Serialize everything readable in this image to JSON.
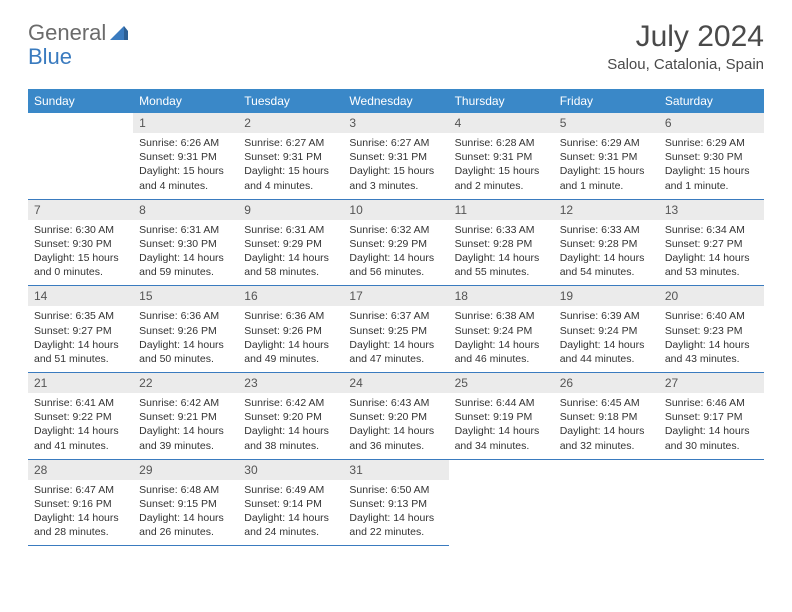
{
  "brand": {
    "part1": "General",
    "part2": "Blue",
    "icon_color": "#3a7bbf"
  },
  "header": {
    "title": "July 2024",
    "location": "Salou, Catalonia, Spain"
  },
  "colors": {
    "header_bg": "#3a88c8",
    "header_text": "#ffffff",
    "daynum_bg": "#ebebeb",
    "border": "#3a7bbf"
  },
  "weekdays": [
    "Sunday",
    "Monday",
    "Tuesday",
    "Wednesday",
    "Thursday",
    "Friday",
    "Saturday"
  ],
  "weeks": [
    [
      null,
      {
        "n": "1",
        "sunrise": "6:26 AM",
        "sunset": "9:31 PM",
        "daylight": "15 hours and 4 minutes."
      },
      {
        "n": "2",
        "sunrise": "6:27 AM",
        "sunset": "9:31 PM",
        "daylight": "15 hours and 4 minutes."
      },
      {
        "n": "3",
        "sunrise": "6:27 AM",
        "sunset": "9:31 PM",
        "daylight": "15 hours and 3 minutes."
      },
      {
        "n": "4",
        "sunrise": "6:28 AM",
        "sunset": "9:31 PM",
        "daylight": "15 hours and 2 minutes."
      },
      {
        "n": "5",
        "sunrise": "6:29 AM",
        "sunset": "9:31 PM",
        "daylight": "15 hours and 1 minute."
      },
      {
        "n": "6",
        "sunrise": "6:29 AM",
        "sunset": "9:30 PM",
        "daylight": "15 hours and 1 minute."
      }
    ],
    [
      {
        "n": "7",
        "sunrise": "6:30 AM",
        "sunset": "9:30 PM",
        "daylight": "15 hours and 0 minutes."
      },
      {
        "n": "8",
        "sunrise": "6:31 AM",
        "sunset": "9:30 PM",
        "daylight": "14 hours and 59 minutes."
      },
      {
        "n": "9",
        "sunrise": "6:31 AM",
        "sunset": "9:29 PM",
        "daylight": "14 hours and 58 minutes."
      },
      {
        "n": "10",
        "sunrise": "6:32 AM",
        "sunset": "9:29 PM",
        "daylight": "14 hours and 56 minutes."
      },
      {
        "n": "11",
        "sunrise": "6:33 AM",
        "sunset": "9:28 PM",
        "daylight": "14 hours and 55 minutes."
      },
      {
        "n": "12",
        "sunrise": "6:33 AM",
        "sunset": "9:28 PM",
        "daylight": "14 hours and 54 minutes."
      },
      {
        "n": "13",
        "sunrise": "6:34 AM",
        "sunset": "9:27 PM",
        "daylight": "14 hours and 53 minutes."
      }
    ],
    [
      {
        "n": "14",
        "sunrise": "6:35 AM",
        "sunset": "9:27 PM",
        "daylight": "14 hours and 51 minutes."
      },
      {
        "n": "15",
        "sunrise": "6:36 AM",
        "sunset": "9:26 PM",
        "daylight": "14 hours and 50 minutes."
      },
      {
        "n": "16",
        "sunrise": "6:36 AM",
        "sunset": "9:26 PM",
        "daylight": "14 hours and 49 minutes."
      },
      {
        "n": "17",
        "sunrise": "6:37 AM",
        "sunset": "9:25 PM",
        "daylight": "14 hours and 47 minutes."
      },
      {
        "n": "18",
        "sunrise": "6:38 AM",
        "sunset": "9:24 PM",
        "daylight": "14 hours and 46 minutes."
      },
      {
        "n": "19",
        "sunrise": "6:39 AM",
        "sunset": "9:24 PM",
        "daylight": "14 hours and 44 minutes."
      },
      {
        "n": "20",
        "sunrise": "6:40 AM",
        "sunset": "9:23 PM",
        "daylight": "14 hours and 43 minutes."
      }
    ],
    [
      {
        "n": "21",
        "sunrise": "6:41 AM",
        "sunset": "9:22 PM",
        "daylight": "14 hours and 41 minutes."
      },
      {
        "n": "22",
        "sunrise": "6:42 AM",
        "sunset": "9:21 PM",
        "daylight": "14 hours and 39 minutes."
      },
      {
        "n": "23",
        "sunrise": "6:42 AM",
        "sunset": "9:20 PM",
        "daylight": "14 hours and 38 minutes."
      },
      {
        "n": "24",
        "sunrise": "6:43 AM",
        "sunset": "9:20 PM",
        "daylight": "14 hours and 36 minutes."
      },
      {
        "n": "25",
        "sunrise": "6:44 AM",
        "sunset": "9:19 PM",
        "daylight": "14 hours and 34 minutes."
      },
      {
        "n": "26",
        "sunrise": "6:45 AM",
        "sunset": "9:18 PM",
        "daylight": "14 hours and 32 minutes."
      },
      {
        "n": "27",
        "sunrise": "6:46 AM",
        "sunset": "9:17 PM",
        "daylight": "14 hours and 30 minutes."
      }
    ],
    [
      {
        "n": "28",
        "sunrise": "6:47 AM",
        "sunset": "9:16 PM",
        "daylight": "14 hours and 28 minutes."
      },
      {
        "n": "29",
        "sunrise": "6:48 AM",
        "sunset": "9:15 PM",
        "daylight": "14 hours and 26 minutes."
      },
      {
        "n": "30",
        "sunrise": "6:49 AM",
        "sunset": "9:14 PM",
        "daylight": "14 hours and 24 minutes."
      },
      {
        "n": "31",
        "sunrise": "6:50 AM",
        "sunset": "9:13 PM",
        "daylight": "14 hours and 22 minutes."
      },
      null,
      null,
      null
    ]
  ],
  "labels": {
    "sunrise": "Sunrise:",
    "sunset": "Sunset:",
    "daylight": "Daylight:"
  }
}
